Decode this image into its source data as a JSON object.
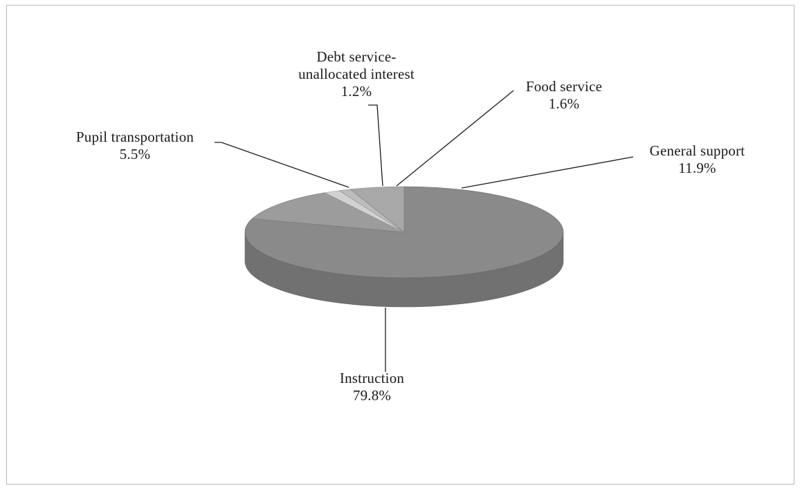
{
  "chart_data": {
    "type": "pie",
    "style": "3d",
    "title": "",
    "slices": [
      {
        "label": "Instruction",
        "value": 79.8,
        "display": "79.8%",
        "color": "#8a8a8a"
      },
      {
        "label": "General support",
        "value": 11.9,
        "display": "11.9%",
        "color": "#9c9c9c"
      },
      {
        "label": "Food service",
        "value": 1.6,
        "display": "1.6%",
        "color": "#d2d2d2"
      },
      {
        "label": "Debt service-unallocated interest",
        "label_lines": [
          "Debt service-",
          "unallocated interest"
        ],
        "value": 1.2,
        "display": "1.2%",
        "color": "#bdbdbd"
      },
      {
        "label": "Pupil transportation",
        "value": 5.5,
        "display": "5.5%",
        "color": "#a8a8a8"
      }
    ]
  }
}
